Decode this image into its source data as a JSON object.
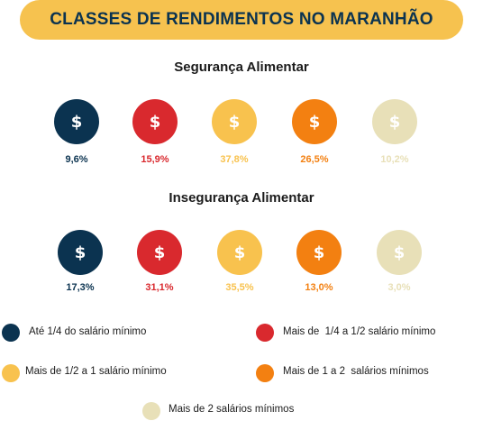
{
  "title": "CLASSES DE RENDIMENTOS NO MARANHÃO",
  "coin_symbol": "$",
  "colors": {
    "banner": "#f6c24f",
    "ate_1_4": "#0b3350",
    "de_1_4_a_1_2": "#d9292e",
    "de_1_2_a_1": "#f8c24e",
    "de_1_a_2": "#f38011",
    "mais_de_2": "#e8e0b8"
  },
  "chart_data": [
    {
      "type": "pictogram",
      "title": "Segurança Alimentar",
      "categories": [
        "Até 1/4 do salário mínimo",
        "Mais de  1/4 a 1/2 salário mínimo",
        "Mais de 1/2 a 1 salário mínimo",
        "Mais de 1 a 2  salários mínimos",
        "Mais de 2 salários mínimos"
      ],
      "values": [
        9.6,
        15.9,
        37.8,
        26.5,
        10.2
      ],
      "labels": [
        "9,6%",
        "15,9%",
        "37,8%",
        "26,5%",
        "10,2%"
      ]
    },
    {
      "type": "pictogram",
      "title": "Insegurança Alimentar",
      "categories": [
        "Até 1/4 do salário mínimo",
        "Mais de  1/4 a 1/2 salário mínimo",
        "Mais de 1/2 a 1 salário mínimo",
        "Mais de 1 a 2  salários mínimos",
        "Mais de 2 salários mínimos"
      ],
      "values": [
        17.3,
        31.1,
        35.5,
        13.0,
        3.0
      ],
      "labels": [
        "17,3%",
        "31,1%",
        "35,5%",
        "13,0%",
        "3,0%"
      ]
    }
  ],
  "legend": [
    "Até 1/4 do salário mínimo",
    "Mais de  1/4 a 1/2 salário mínimo",
    "Mais de 1/2 a 1 salário mínimo",
    "Mais de 1 a 2  salários mínimos",
    "Mais de 2 salários mínimos"
  ]
}
